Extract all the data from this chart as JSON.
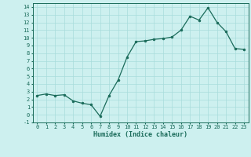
{
  "x": [
    0,
    1,
    2,
    3,
    4,
    5,
    6,
    7,
    8,
    9,
    10,
    11,
    12,
    13,
    14,
    15,
    16,
    17,
    18,
    19,
    20,
    21,
    22,
    23
  ],
  "y": [
    2.5,
    2.7,
    2.5,
    2.6,
    1.8,
    1.5,
    1.3,
    -0.2,
    2.5,
    4.5,
    7.5,
    9.5,
    9.6,
    9.8,
    9.9,
    10.1,
    11.0,
    12.8,
    12.3,
    13.9,
    12.0,
    10.8,
    8.6,
    8.5
  ],
  "xlim": [
    -0.5,
    23.5
  ],
  "ylim": [
    -1,
    14.5
  ],
  "yticks": [
    -1,
    0,
    1,
    2,
    3,
    4,
    5,
    6,
    7,
    8,
    9,
    10,
    11,
    12,
    13,
    14
  ],
  "xticks": [
    0,
    1,
    2,
    3,
    4,
    5,
    6,
    7,
    8,
    9,
    10,
    11,
    12,
    13,
    14,
    15,
    16,
    17,
    18,
    19,
    20,
    21,
    22,
    23
  ],
  "xlabel": "Humidex (Indice chaleur)",
  "line_color": "#1a6b5a",
  "marker": "o",
  "marker_size": 2,
  "bg_color": "#cdf0ef",
  "grid_color": "#a8dcdc",
  "tick_fontsize": 5,
  "xlabel_fontsize": 6
}
